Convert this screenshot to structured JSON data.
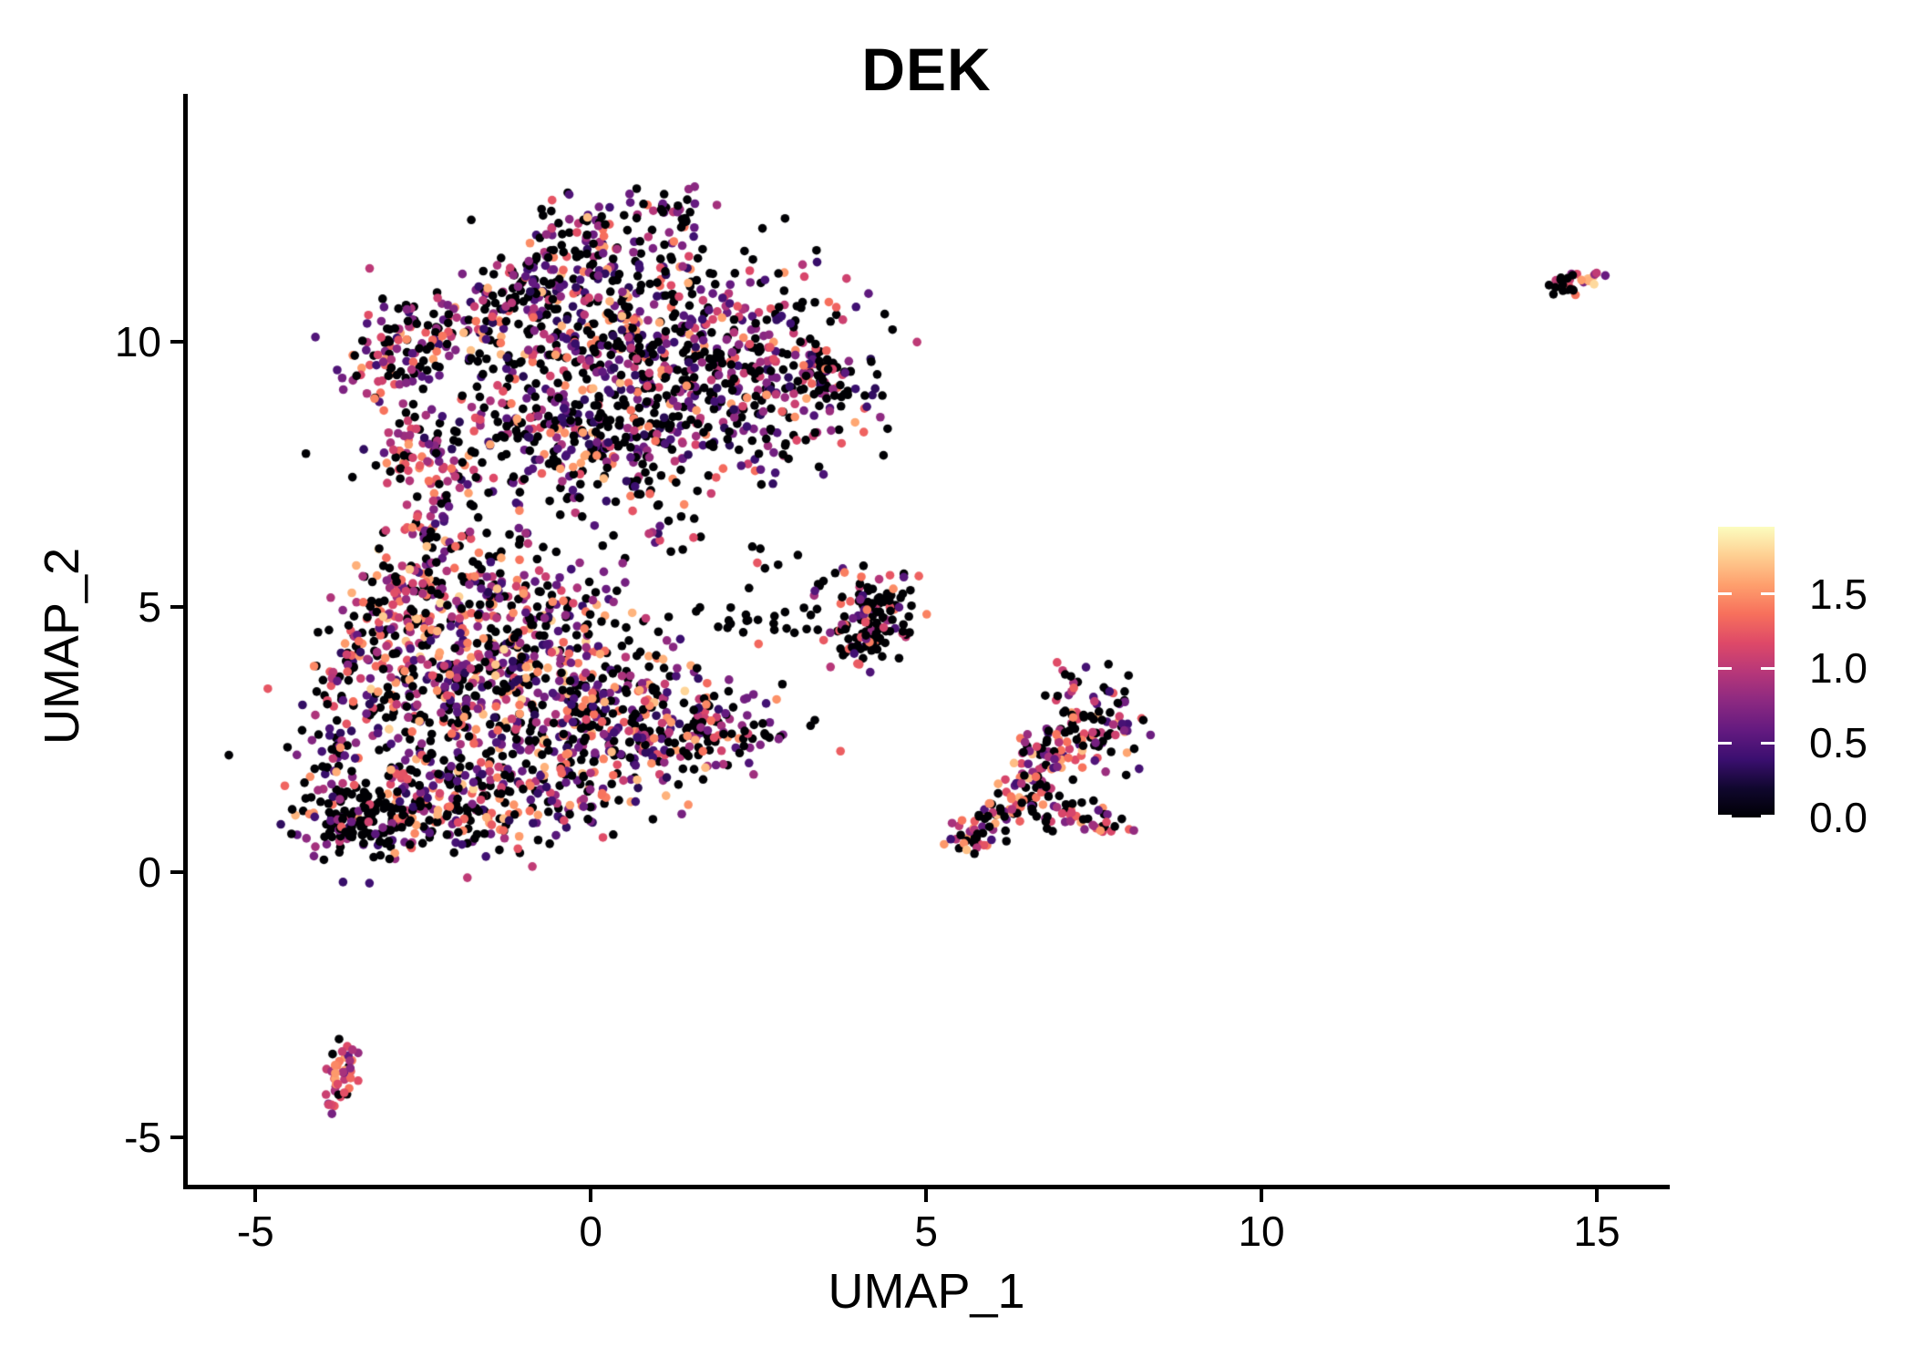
{
  "title": "DEK",
  "axes": {
    "x": {
      "label": "UMAP_1",
      "ticks": [
        -5,
        0,
        5,
        10,
        15
      ],
      "range": [
        -6.05,
        16.06
      ]
    },
    "y": {
      "label": "UMAP_2",
      "ticks": [
        -5,
        0,
        5,
        10
      ],
      "range": [
        -5.93,
        14.64
      ]
    }
  },
  "colorbar": {
    "tick_values": [
      0.0,
      0.5,
      1.0,
      1.5
    ],
    "tick_labels": [
      "0.0",
      "0.5",
      "1.0",
      "1.5"
    ],
    "vmin": 0,
    "vmax": 1.95,
    "colormap": "magma",
    "stops": [
      "#000004",
      "#10072e",
      "#3b0f70",
      "#641a80",
      "#8c2981",
      "#b73779",
      "#de4968",
      "#f7705c",
      "#fe9f6d",
      "#fecf92",
      "#fcfdbf"
    ]
  },
  "chart_data": {
    "type": "scatter",
    "title": "DEK",
    "xlabel": "UMAP_1",
    "ylabel": "UMAP_2",
    "x_range": [
      -6.05,
      16.06
    ],
    "y_range": [
      -5.93,
      14.64
    ],
    "grid": false,
    "legend_position": "right",
    "point_radius_px": 4.8,
    "seed": 42,
    "color_scale": {
      "vmin": 0,
      "vmax": 1.95,
      "colormap": "magma"
    },
    "clusters": [
      {
        "id": "a-top-spike",
        "type": "gauss",
        "cx": 1.2,
        "cy": 12.4,
        "sx": 0.28,
        "sy": 0.22,
        "n": 35,
        "p0": 0.55,
        "vmin": 0.4,
        "vmax": 1.4,
        "g": 1.4
      },
      {
        "id": "a-upperleft-edge",
        "type": "line",
        "x1": -2.5,
        "y1": 9.9,
        "x2": 0.35,
        "y2": 12.15,
        "w": 0.3,
        "n": 150,
        "p0": 0.45,
        "vmin": 0.3,
        "vmax": 1.6,
        "g": 1.3
      },
      {
        "id": "a-main",
        "type": "gauss",
        "cx": 0.45,
        "cy": 10.0,
        "sx": 1.45,
        "sy": 1.05,
        "n": 680,
        "p0": 0.45,
        "vmin": 0.3,
        "vmax": 1.7,
        "g": 1.4
      },
      {
        "id": "a-left-knob",
        "type": "gauss",
        "cx": -2.9,
        "cy": 9.75,
        "sx": 0.33,
        "sy": 0.5,
        "n": 80,
        "p0": 0.35,
        "vmin": 0.4,
        "vmax": 1.6,
        "g": 1.1
      },
      {
        "id": "a-right-lobe",
        "type": "gauss",
        "cx": 2.55,
        "cy": 9.2,
        "sx": 0.8,
        "sy": 0.7,
        "n": 210,
        "p0": 0.5,
        "vmin": 0.3,
        "vmax": 1.6,
        "g": 1.4
      },
      {
        "id": "a-right-tip",
        "type": "gauss",
        "cx": 3.6,
        "cy": 9.35,
        "sx": 0.28,
        "sy": 0.3,
        "n": 40,
        "p0": 0.55,
        "vmin": 0.3,
        "vmax": 1.5,
        "g": 1.4
      },
      {
        "id": "a-bottom-band",
        "type": "gauss",
        "cx": -0.1,
        "cy": 8.25,
        "sx": 1.35,
        "sy": 0.5,
        "n": 240,
        "p0": 0.45,
        "vmin": 0.3,
        "vmax": 1.6,
        "g": 1.3
      },
      {
        "id": "a-bottomleft-spur",
        "type": "gauss",
        "cx": -2.65,
        "cy": 7.85,
        "sx": 0.35,
        "sy": 0.3,
        "n": 45,
        "p0": 0.3,
        "vmin": 0.5,
        "vmax": 1.6,
        "g": 1.0
      },
      {
        "id": "a-tail-down",
        "type": "line",
        "x1": 0.6,
        "y1": 7.5,
        "x2": 1.5,
        "y2": 6.25,
        "w": 0.25,
        "n": 30,
        "p0": 0.45,
        "vmin": 0.3,
        "vmax": 1.5,
        "g": 1.3
      },
      {
        "id": "a-gap-sparse",
        "type": "gauss",
        "cx": -0.6,
        "cy": 7.0,
        "sx": 0.7,
        "sy": 0.4,
        "n": 22,
        "p0": 0.45,
        "vmin": 0.3,
        "vmax": 1.4,
        "g": 1.3
      },
      {
        "id": "b-upperleft-edge",
        "type": "line",
        "x1": -3.65,
        "y1": 3.5,
        "x2": -2.35,
        "y2": 6.45,
        "w": 0.28,
        "n": 120,
        "p0": 0.3,
        "vmin": 0.5,
        "vmax": 1.8,
        "g": 0.9
      },
      {
        "id": "b-isthmus",
        "type": "line",
        "x1": -2.45,
        "y1": 6.3,
        "x2": -2.05,
        "y2": 7.5,
        "w": 0.3,
        "n": 40,
        "p0": 0.4,
        "vmin": 0.4,
        "vmax": 1.6,
        "g": 1.2
      },
      {
        "id": "b-top-mid",
        "type": "gauss",
        "cx": -1.35,
        "cy": 5.2,
        "sx": 0.85,
        "sy": 0.55,
        "n": 160,
        "p0": 0.4,
        "vmin": 0.4,
        "vmax": 1.7,
        "g": 1.1
      },
      {
        "id": "b-main",
        "type": "gauss",
        "cx": -1.7,
        "cy": 3.6,
        "sx": 1.15,
        "sy": 0.95,
        "n": 540,
        "p0": 0.35,
        "vmin": 0.3,
        "vmax": 1.8,
        "g": 1.1
      },
      {
        "id": "b-right-mid",
        "type": "gauss",
        "cx": 0.35,
        "cy": 2.8,
        "sx": 0.95,
        "sy": 0.75,
        "n": 290,
        "p0": 0.42,
        "vmin": 0.3,
        "vmax": 1.7,
        "g": 1.2
      },
      {
        "id": "b-right-tail",
        "type": "gauss",
        "cx": 1.65,
        "cy": 2.7,
        "sx": 0.5,
        "sy": 0.4,
        "n": 85,
        "p0": 0.45,
        "vmin": 0.3,
        "vmax": 1.6,
        "g": 1.2
      },
      {
        "id": "b-bottomleft-black",
        "type": "gauss",
        "cx": -3.5,
        "cy": 0.95,
        "sx": 0.42,
        "sy": 0.33,
        "n": 135,
        "p0": 0.72,
        "vmin": 0.3,
        "vmax": 1.3,
        "g": 1.4
      },
      {
        "id": "b-bottom-band",
        "type": "gauss",
        "cx": -1.85,
        "cy": 1.25,
        "sx": 1.05,
        "sy": 0.5,
        "n": 270,
        "p0": 0.45,
        "vmin": 0.3,
        "vmax": 1.7,
        "g": 1.2
      },
      {
        "id": "b-left-low",
        "type": "gauss",
        "cx": -3.9,
        "cy": 2.1,
        "sx": 0.2,
        "sy": 0.6,
        "n": 40,
        "p0": 0.5,
        "vmin": 0.3,
        "vmax": 1.5,
        "g": 1.2
      },
      {
        "id": "b-straggle-right",
        "type": "gauss",
        "cx": 2.35,
        "cy": 2.5,
        "sx": 0.38,
        "sy": 0.3,
        "n": 9,
        "p0": 0.5,
        "vmin": 0.4,
        "vmax": 1.4,
        "g": 1.2
      },
      {
        "id": "c-clump",
        "type": "gauss",
        "cx": 4.3,
        "cy": 4.9,
        "sx": 0.3,
        "sy": 0.42,
        "n": 95,
        "p0": 0.6,
        "vmin": 0.4,
        "vmax": 1.6,
        "g": 1.3
      },
      {
        "id": "c-clump2",
        "type": "gauss",
        "cx": 3.95,
        "cy": 4.45,
        "sx": 0.25,
        "sy": 0.28,
        "n": 30,
        "p0": 0.6,
        "vmin": 0.4,
        "vmax": 1.5,
        "g": 1.3
      },
      {
        "id": "c-left-scatter",
        "type": "gauss",
        "cx": 3.3,
        "cy": 5.0,
        "sx": 0.45,
        "sy": 0.5,
        "n": 25,
        "p0": 0.7,
        "vmin": 0.5,
        "vmax": 1.5,
        "g": 1.2
      },
      {
        "id": "c-between",
        "type": "gauss",
        "cx": 2.25,
        "cy": 4.65,
        "sx": 0.5,
        "sy": 0.15,
        "n": 14,
        "p0": 0.5,
        "vmin": 0.4,
        "vmax": 1.5,
        "g": 1.1
      },
      {
        "id": "c-tiny-top",
        "type": "gauss",
        "cx": 2.6,
        "cy": 5.95,
        "sx": 0.13,
        "sy": 0.15,
        "n": 5,
        "p0": 0.4,
        "vmin": 0.5,
        "vmax": 1.4,
        "g": 1.0
      },
      {
        "id": "d-arm1",
        "type": "line",
        "x1": 5.55,
        "y1": 0.5,
        "x2": 6.35,
        "y2": 1.3,
        "w": 0.15,
        "n": 60,
        "p0": 0.3,
        "vmin": 0.4,
        "vmax": 1.7,
        "g": 1.0
      },
      {
        "id": "d-arm2",
        "type": "line",
        "x1": 6.4,
        "y1": 1.5,
        "x2": 7.35,
        "y2": 2.75,
        "w": 0.28,
        "n": 95,
        "p0": 0.35,
        "vmin": 0.4,
        "vmax": 1.7,
        "g": 1.0
      },
      {
        "id": "d-right-blob",
        "type": "gauss",
        "cx": 7.75,
        "cy": 2.85,
        "sx": 0.26,
        "sy": 0.45,
        "n": 55,
        "p0": 0.5,
        "vmin": 0.4,
        "vmax": 1.6,
        "g": 1.2
      },
      {
        "id": "d-low-arm",
        "type": "line",
        "x1": 6.95,
        "y1": 1.15,
        "x2": 7.9,
        "y2": 0.78,
        "w": 0.13,
        "n": 35,
        "p0": 0.3,
        "vmin": 0.5,
        "vmax": 1.7,
        "g": 0.9
      },
      {
        "id": "d-mid-sparse",
        "type": "gauss",
        "cx": 6.55,
        "cy": 1.25,
        "sx": 0.45,
        "sy": 0.22,
        "n": 28,
        "p0": 0.8,
        "vmin": 0.3,
        "vmax": 1.2,
        "g": 1.3
      },
      {
        "id": "d-top-spur",
        "type": "gauss",
        "cx": 7.1,
        "cy": 3.55,
        "sx": 0.14,
        "sy": 0.28,
        "n": 14,
        "p0": 0.45,
        "vmin": 0.4,
        "vmax": 1.5,
        "g": 1.1
      },
      {
        "id": "e-lowerleft-line",
        "type": "line",
        "x1": -3.6,
        "y1": -3.25,
        "x2": -3.85,
        "y2": -4.4,
        "w": 0.11,
        "n": 44,
        "p0": 0.15,
        "vmin": 0.5,
        "vmax": 1.7,
        "g": 0.9
      },
      {
        "id": "f-topright-black",
        "type": "line",
        "x1": 14.15,
        "y1": 11.0,
        "x2": 14.6,
        "y2": 11.1,
        "w": 0.09,
        "n": 14,
        "p0": 0.85,
        "vmin": 0.4,
        "vmax": 1.2,
        "g": 1.3
      },
      {
        "id": "f-topright-color",
        "type": "gauss",
        "cx": 14.85,
        "cy": 11.15,
        "sx": 0.16,
        "sy": 0.12,
        "n": 14,
        "p0": 0.15,
        "vmin": 0.6,
        "vmax": 1.8,
        "g": 0.9
      }
    ]
  }
}
